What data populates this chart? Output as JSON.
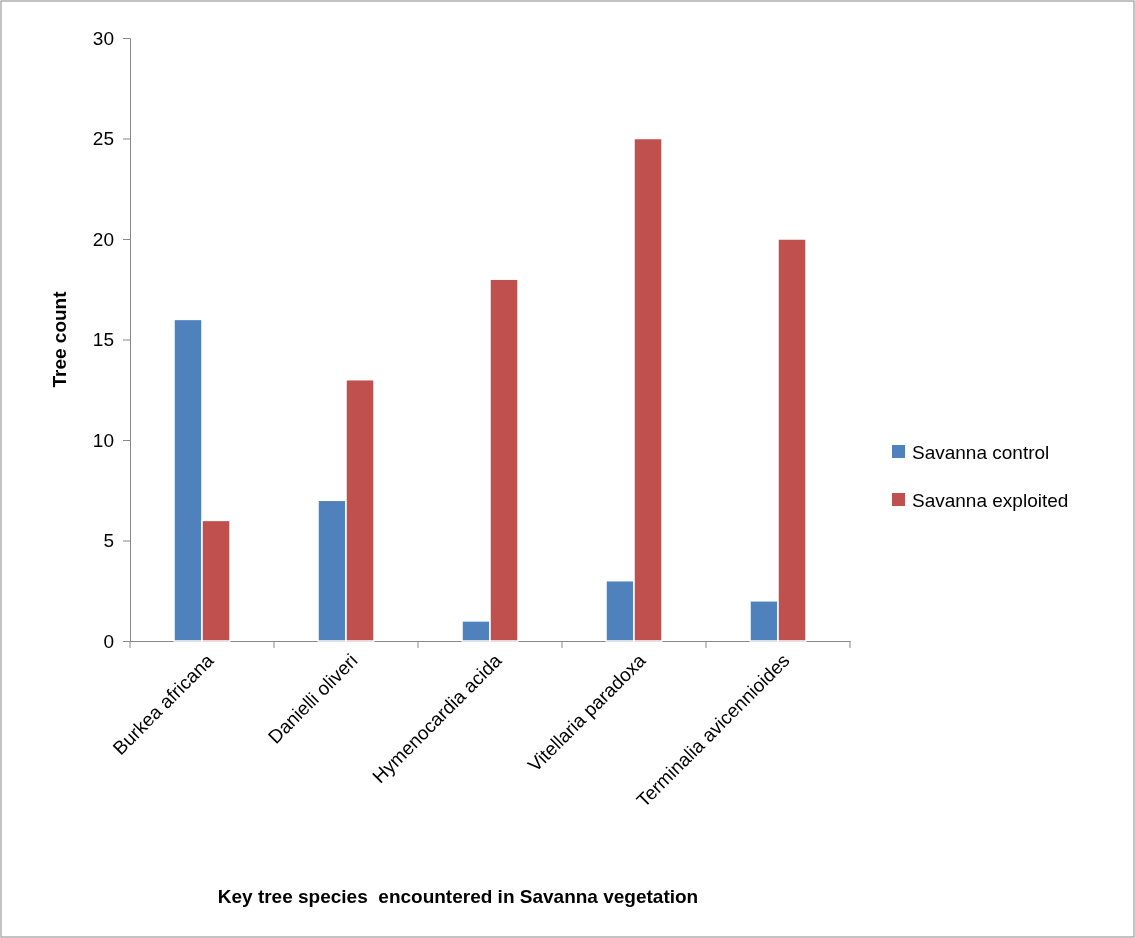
{
  "chart_data": {
    "type": "bar",
    "ylabel": "Tree count",
    "xlabel": "Key tree species  encountered in Savanna vegetation",
    "categories": [
      "Burkea africana",
      "Danielli oliveri",
      "Hymenocardia acida",
      "Vitellaria paradoxa",
      "Terminalia avicennioides"
    ],
    "series": [
      {
        "name": "Savanna control",
        "color": "#4f81bd",
        "values": [
          16,
          7,
          1,
          3,
          2
        ]
      },
      {
        "name": "Savanna exploited",
        "color": "#c0504d",
        "values": [
          6,
          13,
          18,
          25,
          20
        ]
      }
    ],
    "ylim": [
      0,
      30
    ],
    "yticks": [
      0,
      5,
      10,
      15,
      20,
      25,
      30
    ],
    "grid": false,
    "legend": "right"
  }
}
